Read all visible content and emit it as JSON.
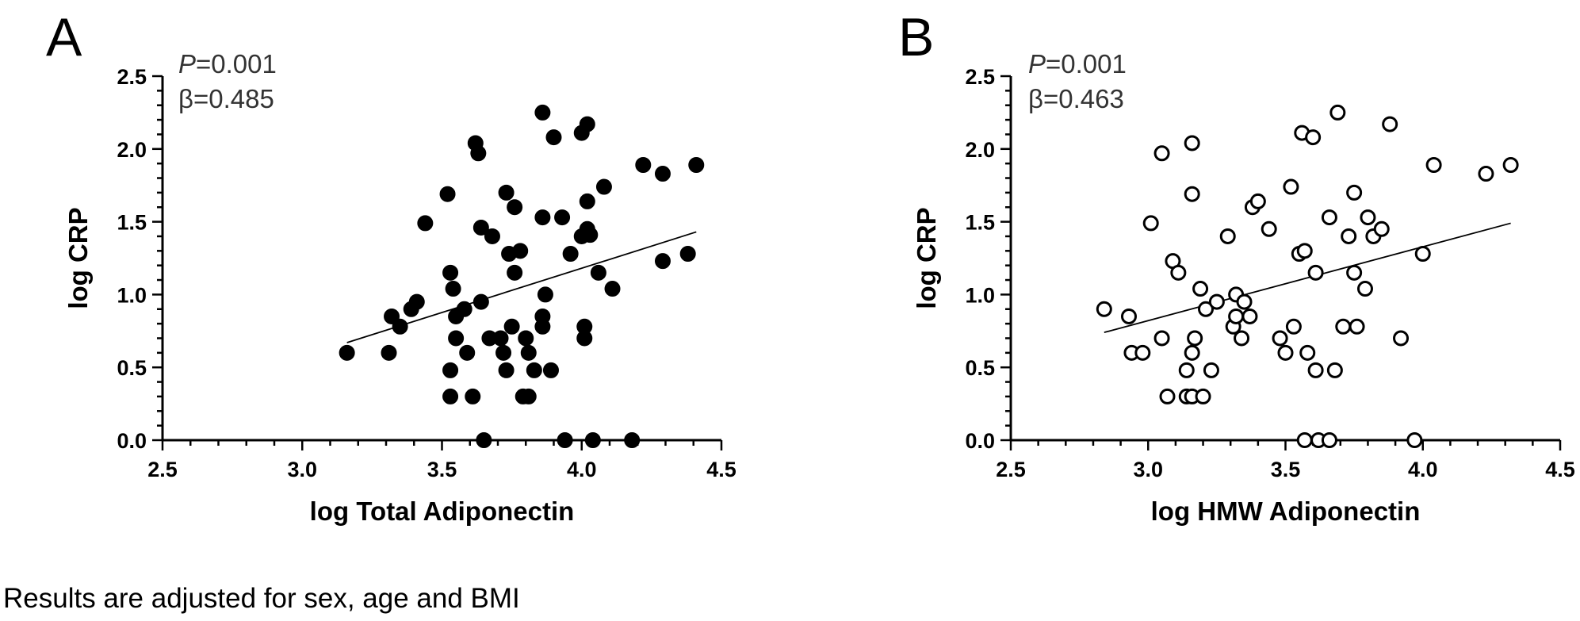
{
  "chart_data": [
    {
      "type": "scatter",
      "panel_label": "A",
      "stats": {
        "p_symbol": "P",
        "p_value": "=0.001",
        "beta": "β=0.485"
      },
      "xlabel": "log Total Adiponectin",
      "ylabel": "log CRP",
      "xlim": [
        2.5,
        4.5
      ],
      "ylim": [
        0.0,
        2.5
      ],
      "xticks": [
        "2.5",
        "3.0",
        "3.5",
        "4.0",
        "4.5"
      ],
      "yticks": [
        "0.0",
        "0.5",
        "1.0",
        "1.5",
        "2.0",
        "2.5"
      ],
      "marker": "filled-circle",
      "grid": false,
      "points": [
        [
          3.16,
          0.6
        ],
        [
          3.31,
          0.6
        ],
        [
          3.32,
          0.85
        ],
        [
          3.35,
          0.78
        ],
        [
          3.39,
          0.9
        ],
        [
          3.41,
          0.95
        ],
        [
          3.44,
          1.49
        ],
        [
          3.52,
          1.69
        ],
        [
          3.53,
          1.15
        ],
        [
          3.53,
          0.48
        ],
        [
          3.53,
          0.3
        ],
        [
          3.54,
          1.04
        ],
        [
          3.55,
          0.85
        ],
        [
          3.55,
          0.7
        ],
        [
          3.58,
          0.9
        ],
        [
          3.59,
          0.6
        ],
        [
          3.61,
          0.3
        ],
        [
          3.62,
          2.04
        ],
        [
          3.63,
          1.97
        ],
        [
          3.64,
          1.46
        ],
        [
          3.64,
          0.95
        ],
        [
          3.65,
          0.0
        ],
        [
          3.67,
          0.7
        ],
        [
          3.68,
          1.4
        ],
        [
          3.71,
          0.7
        ],
        [
          3.72,
          0.6
        ],
        [
          3.73,
          1.7
        ],
        [
          3.73,
          0.48
        ],
        [
          3.74,
          1.28
        ],
        [
          3.75,
          0.78
        ],
        [
          3.76,
          1.6
        ],
        [
          3.76,
          1.15
        ],
        [
          3.78,
          1.3
        ],
        [
          3.79,
          0.3
        ],
        [
          3.8,
          0.7
        ],
        [
          3.81,
          0.3
        ],
        [
          3.81,
          0.6
        ],
        [
          3.83,
          0.48
        ],
        [
          3.86,
          2.25
        ],
        [
          3.86,
          1.53
        ],
        [
          3.86,
          0.85
        ],
        [
          3.86,
          0.78
        ],
        [
          3.87,
          1.0
        ],
        [
          3.89,
          0.48
        ],
        [
          3.9,
          2.08
        ],
        [
          3.93,
          1.53
        ],
        [
          3.94,
          0.0
        ],
        [
          3.96,
          1.28
        ],
        [
          4.0,
          2.11
        ],
        [
          4.0,
          1.4
        ],
        [
          4.01,
          0.7
        ],
        [
          4.01,
          0.78
        ],
        [
          4.02,
          2.17
        ],
        [
          4.02,
          1.64
        ],
        [
          4.02,
          1.45
        ],
        [
          4.03,
          1.41
        ],
        [
          4.04,
          0.0
        ],
        [
          4.06,
          1.15
        ],
        [
          4.08,
          1.74
        ],
        [
          4.11,
          1.04
        ],
        [
          4.18,
          0.0
        ],
        [
          4.22,
          1.89
        ],
        [
          4.29,
          1.83
        ],
        [
          4.29,
          1.23
        ],
        [
          4.38,
          1.28
        ],
        [
          4.41,
          1.89
        ]
      ],
      "regression_line": {
        "x": [
          3.16,
          4.41
        ],
        "y": [
          0.67,
          1.43
        ]
      }
    },
    {
      "type": "scatter",
      "panel_label": "B",
      "stats": {
        "p_symbol": "P",
        "p_value": "=0.001",
        "beta": "β=0.463"
      },
      "xlabel": "log HMW Adiponectin",
      "ylabel": "log CRP",
      "xlim": [
        2.5,
        4.5
      ],
      "ylim": [
        0.0,
        2.5
      ],
      "xticks": [
        "2.5",
        "3.0",
        "3.5",
        "4.0",
        "4.5"
      ],
      "yticks": [
        "0.0",
        "0.5",
        "1.0",
        "1.5",
        "2.0",
        "2.5"
      ],
      "marker": "open-circle",
      "grid": false,
      "points": [
        [
          2.84,
          0.9
        ],
        [
          2.93,
          0.85
        ],
        [
          2.94,
          0.6
        ],
        [
          2.98,
          0.6
        ],
        [
          3.01,
          1.49
        ],
        [
          3.05,
          1.97
        ],
        [
          3.05,
          0.7
        ],
        [
          3.07,
          0.3
        ],
        [
          3.09,
          1.23
        ],
        [
          3.11,
          1.15
        ],
        [
          3.14,
          0.3
        ],
        [
          3.14,
          0.48
        ],
        [
          3.16,
          0.3
        ],
        [
          3.16,
          0.6
        ],
        [
          3.16,
          2.04
        ],
        [
          3.16,
          1.69
        ],
        [
          3.17,
          0.7
        ],
        [
          3.19,
          1.04
        ],
        [
          3.2,
          0.3
        ],
        [
          3.21,
          0.9
        ],
        [
          3.23,
          0.48
        ],
        [
          3.25,
          0.95
        ],
        [
          3.29,
          1.4
        ],
        [
          3.31,
          0.78
        ],
        [
          3.32,
          1.0
        ],
        [
          3.32,
          0.85
        ],
        [
          3.34,
          0.7
        ],
        [
          3.35,
          0.95
        ],
        [
          3.37,
          0.85
        ],
        [
          3.38,
          1.6
        ],
        [
          3.4,
          1.64
        ],
        [
          3.44,
          1.45
        ],
        [
          3.48,
          0.7
        ],
        [
          3.5,
          0.6
        ],
        [
          3.52,
          1.74
        ],
        [
          3.53,
          0.78
        ],
        [
          3.55,
          1.28
        ],
        [
          3.56,
          2.11
        ],
        [
          3.57,
          1.3
        ],
        [
          3.57,
          0.0
        ],
        [
          3.58,
          0.6
        ],
        [
          3.6,
          2.08
        ],
        [
          3.61,
          1.15
        ],
        [
          3.61,
          0.48
        ],
        [
          3.62,
          0.0
        ],
        [
          3.66,
          1.53
        ],
        [
          3.66,
          0.0
        ],
        [
          3.68,
          0.48
        ],
        [
          3.69,
          2.25
        ],
        [
          3.71,
          0.78
        ],
        [
          3.73,
          1.4
        ],
        [
          3.75,
          1.7
        ],
        [
          3.75,
          1.15
        ],
        [
          3.76,
          0.78
        ],
        [
          3.79,
          1.04
        ],
        [
          3.8,
          1.53
        ],
        [
          3.82,
          1.4
        ],
        [
          3.85,
          1.45
        ],
        [
          3.88,
          2.17
        ],
        [
          3.92,
          0.7
        ],
        [
          3.97,
          0.0
        ],
        [
          4.0,
          1.28
        ],
        [
          4.04,
          1.89
        ],
        [
          4.23,
          1.83
        ],
        [
          4.32,
          1.89
        ]
      ],
      "regression_line": {
        "x": [
          2.84,
          4.32
        ],
        "y": [
          0.74,
          1.49
        ]
      }
    }
  ],
  "footnote": "Results are adjusted for sex, age and BMI"
}
